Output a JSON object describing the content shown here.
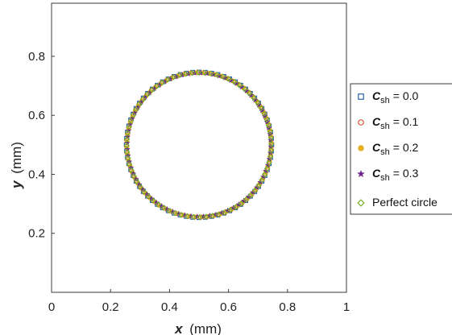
{
  "chart_data": {
    "type": "scatter",
    "title": "",
    "xlabel": "x",
    "xlabel_unit": "(mm)",
    "ylabel": "y",
    "ylabel_unit": "(mm)",
    "xlim": [
      0,
      1
    ],
    "ylim": [
      0,
      0.98
    ],
    "xticks": [
      0,
      0.2,
      0.4,
      0.6,
      0.8,
      1
    ],
    "xtick_labels": [
      "0",
      "0.2",
      "0.4",
      "0.6",
      "0.8",
      "1"
    ],
    "yticks": [
      0.2,
      0.4,
      0.6,
      0.8
    ],
    "ytick_labels": [
      "0.2",
      "0.4",
      "0.6",
      "0.8"
    ],
    "grid": false,
    "legend_position": "outside-right",
    "circle": {
      "center": [
        0.5,
        0.5
      ],
      "radius": 0.245,
      "n_points": 72
    },
    "series": [
      {
        "name": "C_sh = 0.0",
        "symbol": "C",
        "subscript": "sh",
        "value_text": "= 0.0",
        "marker": "square",
        "color": "#2f5fa8",
        "filled": false,
        "radius": 0.2465,
        "phase_deg": 0
      },
      {
        "name": "C_sh = 0.1",
        "symbol": "C",
        "subscript": "sh",
        "value_text": "= 0.1",
        "marker": "circle",
        "color": "#c8592a",
        "filled": false,
        "radius": 0.2455,
        "phase_deg": 1.2
      },
      {
        "name": "C_sh = 0.2",
        "symbol": "C",
        "subscript": "sh",
        "value_text": "= 0.2",
        "marker": "circle",
        "color": "#e8b022",
        "filled": true,
        "radius": 0.2445,
        "phase_deg": 2.4
      },
      {
        "name": "C_sh = 0.3",
        "symbol": "C",
        "subscript": "sh",
        "value_text": "= 0.3",
        "marker": "star",
        "color": "#6a2a8a",
        "filled": true,
        "radius": 0.2435,
        "phase_deg": 3.6
      },
      {
        "name": "Perfect circle",
        "label": "Perfect circle",
        "marker": "diamond",
        "color": "#7ab02c",
        "filled": false,
        "radius": 0.245,
        "phase_deg": 0.6
      }
    ]
  }
}
